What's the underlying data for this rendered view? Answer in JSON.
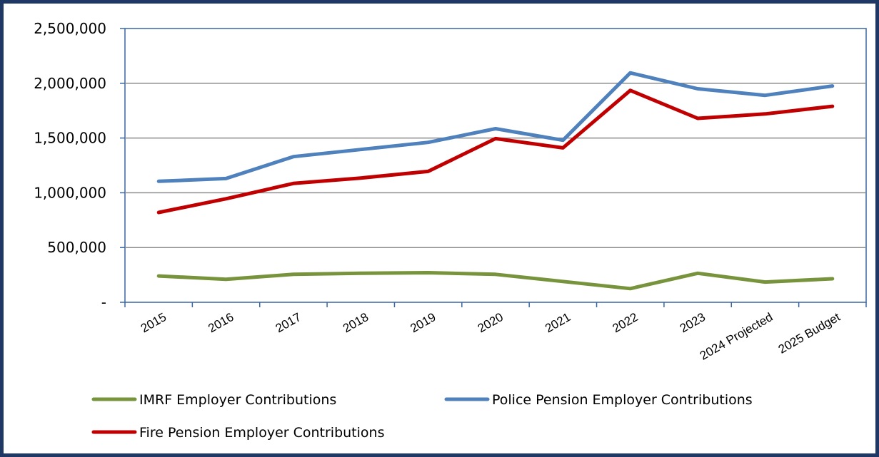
{
  "chart_data": {
    "type": "line",
    "title": "",
    "xlabel": "",
    "ylabel": "",
    "categories": [
      "2015",
      "2016",
      "2017",
      "2018",
      "2019",
      "2020",
      "2021",
      "2022",
      "2023",
      "2024 Projected",
      "2025 Budget"
    ],
    "y_ticks": [
      "-",
      "500,000",
      "1,000,000",
      "1,500,000",
      "2,000,000",
      "2,500,000"
    ],
    "ylim": [
      0,
      2500000
    ],
    "grid": "horizontal",
    "legend_position": "bottom",
    "series": [
      {
        "name": "IMRF Employer Contributions",
        "color": "#77933c",
        "values": [
          240000,
          210000,
          255000,
          265000,
          270000,
          255000,
          190000,
          125000,
          265000,
          185000,
          215000
        ]
      },
      {
        "name": "Police Pension Employer Contributions",
        "color": "#4f81bd",
        "values": [
          1105000,
          1130000,
          1330000,
          1395000,
          1460000,
          1585000,
          1480000,
          2095000,
          1950000,
          1890000,
          1975000
        ]
      },
      {
        "name": "Fire Pension Employer Contributions",
        "color": "#c00000",
        "values": [
          820000,
          945000,
          1085000,
          1135000,
          1195000,
          1495000,
          1410000,
          1935000,
          1680000,
          1720000,
          1790000
        ]
      }
    ]
  }
}
